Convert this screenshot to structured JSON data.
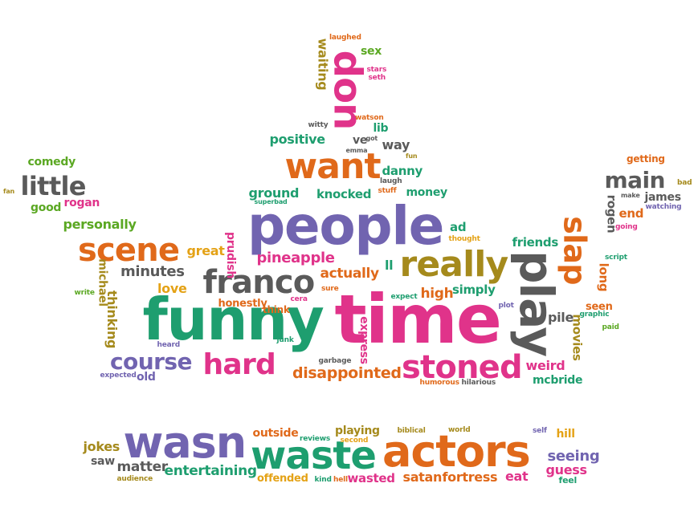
{
  "colors": {
    "orange": "#E0691A",
    "green": "#1E9E6F",
    "purple": "#7164B0",
    "pink": "#E0338A",
    "gray": "#5A5A5A",
    "olive": "#A58A1C",
    "lime": "#5BA823",
    "gold": "#E4A216"
  },
  "words": [
    {
      "text": "funny",
      "color": "green"
    },
    {
      "text": "time",
      "color": "pink"
    },
    {
      "text": "people",
      "color": "purple"
    },
    {
      "text": "wasn",
      "color": "purple"
    },
    {
      "text": "actors",
      "color": "orange"
    },
    {
      "text": "waste",
      "color": "green"
    },
    {
      "text": "really",
      "color": "olive"
    },
    {
      "text": "play",
      "color": "gray"
    },
    {
      "text": "want",
      "color": "orange"
    },
    {
      "text": "scene",
      "color": "orange"
    },
    {
      "text": "franco",
      "color": "gray"
    },
    {
      "text": "stoned",
      "color": "pink"
    },
    {
      "text": "hard",
      "color": "pink"
    },
    {
      "text": "course",
      "color": "purple"
    },
    {
      "text": "little",
      "color": "gray"
    },
    {
      "text": "don",
      "color": "pink"
    },
    {
      "text": "slap",
      "color": "orange"
    },
    {
      "text": "main",
      "color": "gray"
    },
    {
      "text": "pineapple",
      "color": "pink"
    },
    {
      "text": "disappointed",
      "color": "orange"
    },
    {
      "text": "minutes",
      "color": "gray"
    },
    {
      "text": "personally",
      "color": "lime"
    },
    {
      "text": "ground",
      "color": "green"
    },
    {
      "text": "knocked",
      "color": "green"
    },
    {
      "text": "positive",
      "color": "green"
    },
    {
      "text": "danny",
      "color": "green"
    },
    {
      "text": "money",
      "color": "green"
    },
    {
      "text": "way",
      "color": "gray"
    },
    {
      "text": "lib",
      "color": "green"
    },
    {
      "text": "ve",
      "color": "gray"
    },
    {
      "text": "sex",
      "color": "lime"
    },
    {
      "text": "waiting",
      "color": "olive"
    },
    {
      "text": "laughed",
      "color": "orange"
    },
    {
      "text": "stars",
      "color": "pink"
    },
    {
      "text": "seth",
      "color": "pink"
    },
    {
      "text": "watson",
      "color": "orange"
    },
    {
      "text": "witty",
      "color": "gray"
    },
    {
      "text": "got",
      "color": "gray"
    },
    {
      "text": "emma",
      "color": "gray"
    },
    {
      "text": "fun",
      "color": "olive"
    },
    {
      "text": "laugh",
      "color": "gray"
    },
    {
      "text": "stuff",
      "color": "orange"
    },
    {
      "text": "superbad",
      "color": "green"
    },
    {
      "text": "comedy",
      "color": "lime"
    },
    {
      "text": "good",
      "color": "lime"
    },
    {
      "text": "rogan",
      "color": "pink"
    },
    {
      "text": "fan",
      "color": "olive"
    },
    {
      "text": "great",
      "color": "gold"
    },
    {
      "text": "prudish",
      "color": "pink"
    },
    {
      "text": "actually",
      "color": "orange"
    },
    {
      "text": "ll",
      "color": "green"
    },
    {
      "text": "ad",
      "color": "green"
    },
    {
      "text": "thought",
      "color": "gold"
    },
    {
      "text": "friends",
      "color": "green"
    },
    {
      "text": "getting",
      "color": "orange"
    },
    {
      "text": "bad",
      "color": "olive"
    },
    {
      "text": "make",
      "color": "gray"
    },
    {
      "text": "james",
      "color": "gray"
    },
    {
      "text": "watching",
      "color": "purple"
    },
    {
      "text": "end",
      "color": "orange"
    },
    {
      "text": "going",
      "color": "pink"
    },
    {
      "text": "rogen",
      "color": "gray"
    },
    {
      "text": "script",
      "color": "green"
    },
    {
      "text": "long",
      "color": "orange"
    },
    {
      "text": "love",
      "color": "gold"
    },
    {
      "text": "michael",
      "color": "olive"
    },
    {
      "text": "write",
      "color": "lime"
    },
    {
      "text": "thinking",
      "color": "olive"
    },
    {
      "text": "honestly",
      "color": "orange"
    },
    {
      "text": "think",
      "color": "orange"
    },
    {
      "text": "sure",
      "color": "orange"
    },
    {
      "text": "cera",
      "color": "pink"
    },
    {
      "text": "expect",
      "color": "green"
    },
    {
      "text": "high",
      "color": "orange"
    },
    {
      "text": "simply",
      "color": "green"
    },
    {
      "text": "plot",
      "color": "purple"
    },
    {
      "text": "seen",
      "color": "orange"
    },
    {
      "text": "graphic",
      "color": "green"
    },
    {
      "text": "pile",
      "color": "gray"
    },
    {
      "text": "paid",
      "color": "lime"
    },
    {
      "text": "movies",
      "color": "olive"
    },
    {
      "text": "heard",
      "color": "purple"
    },
    {
      "text": "old",
      "color": "purple"
    },
    {
      "text": "expected",
      "color": "purple"
    },
    {
      "text": "junk",
      "color": "green"
    },
    {
      "text": "garbage",
      "color": "gray"
    },
    {
      "text": "express",
      "color": "pink"
    },
    {
      "text": "weird",
      "color": "pink"
    },
    {
      "text": "mcbride",
      "color": "green"
    },
    {
      "text": "humorous",
      "color": "orange"
    },
    {
      "text": "hilarious",
      "color": "gray"
    },
    {
      "text": "jokes",
      "color": "olive"
    },
    {
      "text": "saw",
      "color": "gray"
    },
    {
      "text": "matter",
      "color": "gray"
    },
    {
      "text": "audience",
      "color": "olive"
    },
    {
      "text": "entertaining",
      "color": "green"
    },
    {
      "text": "outside",
      "color": "orange"
    },
    {
      "text": "reviews",
      "color": "green"
    },
    {
      "text": "playing",
      "color": "olive"
    },
    {
      "text": "second",
      "color": "gold"
    },
    {
      "text": "biblical",
      "color": "olive"
    },
    {
      "text": "world",
      "color": "olive"
    },
    {
      "text": "self",
      "color": "purple"
    },
    {
      "text": "hill",
      "color": "gold"
    },
    {
      "text": "seeing",
      "color": "purple"
    },
    {
      "text": "guess",
      "color": "pink"
    },
    {
      "text": "feel",
      "color": "green"
    },
    {
      "text": "eat",
      "color": "pink"
    },
    {
      "text": "offended",
      "color": "gold"
    },
    {
      "text": "kind",
      "color": "green"
    },
    {
      "text": "hell",
      "color": "orange"
    },
    {
      "text": "wasted",
      "color": "pink"
    },
    {
      "text": "satan",
      "color": "orange"
    },
    {
      "text": "fortress",
      "color": "orange"
    }
  ]
}
